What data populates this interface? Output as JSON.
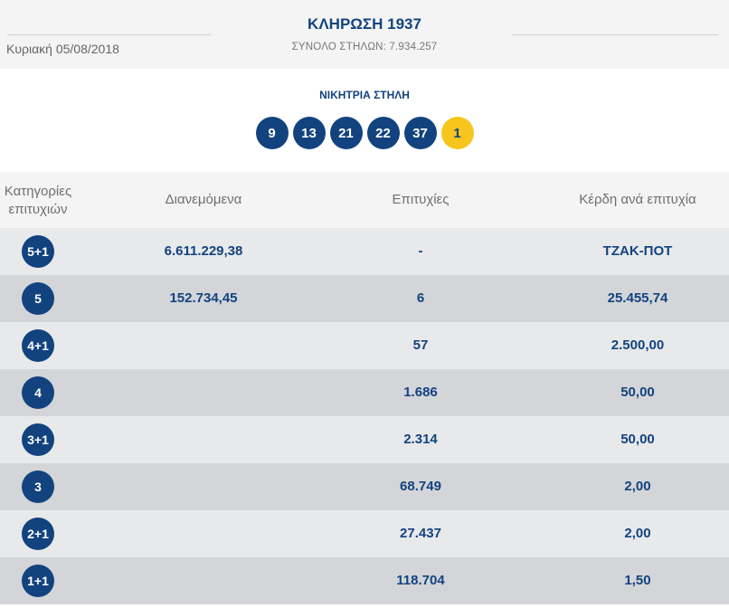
{
  "header": {
    "title": "ΚΛΗΡΩΣΗ 1937",
    "date": "Κυριακή 05/08/2018",
    "total_columns": "ΣΥΝΟΛΟ ΣΤΗΛΩΝ: 7.934.257"
  },
  "winning": {
    "label": "ΝΙΚΗΤΡΙΑ ΣΤΗΛΗ",
    "numbers": [
      "9",
      "13",
      "21",
      "22",
      "37"
    ],
    "joker": "1"
  },
  "table": {
    "headers": {
      "category_line1": "Κατηγορίες",
      "category_line2": "επιτυχιών",
      "distributed": "Διανεμόμενα",
      "winners": "Επιτυχίες",
      "prize": "Κέρδη ανά επιτυχία"
    },
    "rows": [
      {
        "category": "5+1",
        "distributed": "6.611.229,38",
        "winners": "-",
        "prize": "ΤΖΑΚ-ΠΟΤ"
      },
      {
        "category": "5",
        "distributed": "152.734,45",
        "winners": "6",
        "prize": "25.455,74"
      },
      {
        "category": "4+1",
        "distributed": "",
        "winners": "57",
        "prize": "2.500,00"
      },
      {
        "category": "4",
        "distributed": "",
        "winners": "1.686",
        "prize": "50,00"
      },
      {
        "category": "3+1",
        "distributed": "",
        "winners": "2.314",
        "prize": "50,00"
      },
      {
        "category": "3",
        "distributed": "",
        "winners": "68.749",
        "prize": "2,00"
      },
      {
        "category": "2+1",
        "distributed": "",
        "winners": "27.437",
        "prize": "2,00"
      },
      {
        "category": "1+1",
        "distributed": "",
        "winners": "118.704",
        "prize": "1,50"
      }
    ]
  },
  "colors": {
    "brand_blue": "#12437f",
    "joker_yellow": "#f7c51d",
    "row_light": "#e8e9eb",
    "row_dark": "#d3d5d8"
  }
}
